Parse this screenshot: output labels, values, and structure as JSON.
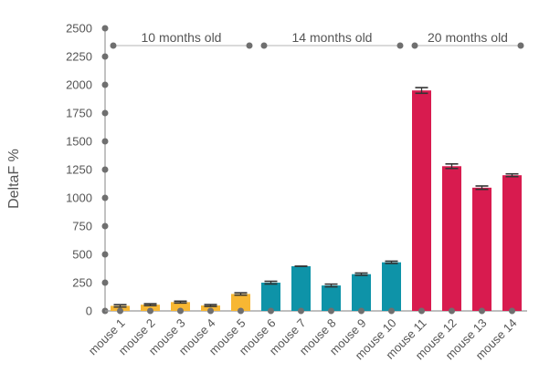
{
  "chart_data": {
    "type": "bar",
    "ylabel": "DeltaF %",
    "xlabel": "",
    "ylim": [
      0,
      2500
    ],
    "yticks": [
      0,
      250,
      500,
      750,
      1000,
      1250,
      1500,
      1750,
      2000,
      2250,
      2500
    ],
    "grid": false,
    "categories": [
      "mouse 1",
      "mouse 2",
      "mouse 3",
      "mouse 4",
      "mouse 5",
      "mouse 6",
      "mouse 7",
      "mouse 8",
      "mouse 9",
      "mouse 10",
      "mouse 11",
      "mouse 12",
      "mouse 13",
      "mouse 14"
    ],
    "values": [
      45,
      55,
      78,
      48,
      150,
      250,
      395,
      225,
      325,
      430,
      1950,
      1280,
      1090,
      1200
    ],
    "errors": [
      10,
      8,
      8,
      8,
      10,
      12,
      0,
      12,
      10,
      10,
      25,
      20,
      15,
      12
    ],
    "groups": [
      {
        "label": "10 months old",
        "start": 0,
        "end": 4,
        "color": "#f7b733"
      },
      {
        "label": "14 months old",
        "start": 5,
        "end": 9,
        "color": "#0e93a8"
      },
      {
        "label": "20 months old",
        "start": 10,
        "end": 13,
        "color": "#d81b4f"
      }
    ]
  }
}
